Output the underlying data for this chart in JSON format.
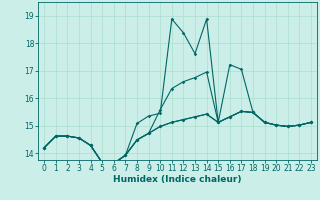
{
  "xlabel": "Humidex (Indice chaleur)",
  "bg_color": "#cceee8",
  "grid_color": "#aaddcc",
  "line_color": "#006666",
  "xlim": [
    -0.5,
    23.5
  ],
  "ylim": [
    13.75,
    19.5
  ],
  "x_ticks": [
    0,
    1,
    2,
    3,
    4,
    5,
    6,
    7,
    8,
    9,
    10,
    11,
    12,
    13,
    14,
    15,
    16,
    17,
    18,
    19,
    20,
    21,
    22,
    23
  ],
  "y_ticks": [
    14,
    15,
    16,
    17,
    18,
    19
  ],
  "series": [
    [
      14.2,
      14.62,
      14.62,
      14.55,
      14.28,
      13.65,
      13.63,
      13.92,
      15.08,
      15.35,
      15.45,
      18.88,
      18.38,
      17.62,
      18.88,
      15.12,
      17.22,
      17.05,
      15.48,
      15.12,
      15.02,
      14.97,
      15.02,
      15.12
    ],
    [
      14.2,
      14.62,
      14.62,
      14.55,
      14.28,
      13.65,
      13.63,
      13.92,
      14.48,
      14.72,
      15.58,
      16.35,
      16.6,
      16.75,
      16.95,
      15.12,
      15.32,
      15.52,
      15.48,
      15.12,
      15.02,
      14.97,
      15.02,
      15.12
    ],
    [
      14.2,
      14.62,
      14.62,
      14.55,
      14.28,
      13.65,
      13.63,
      13.92,
      14.48,
      14.72,
      14.97,
      15.12,
      15.22,
      15.32,
      15.42,
      15.12,
      15.32,
      15.52,
      15.48,
      15.12,
      15.02,
      14.97,
      15.02,
      15.12
    ],
    [
      14.2,
      14.62,
      14.62,
      14.55,
      14.28,
      13.65,
      13.63,
      13.92,
      14.48,
      14.72,
      14.97,
      15.12,
      15.22,
      15.32,
      15.42,
      15.12,
      15.32,
      15.52,
      15.48,
      15.12,
      15.02,
      14.97,
      15.02,
      15.12
    ]
  ],
  "marker": "D",
  "markersize": 1.8,
  "linewidth": 0.8,
  "tick_fontsize": 5.5,
  "xlabel_fontsize": 6.5
}
